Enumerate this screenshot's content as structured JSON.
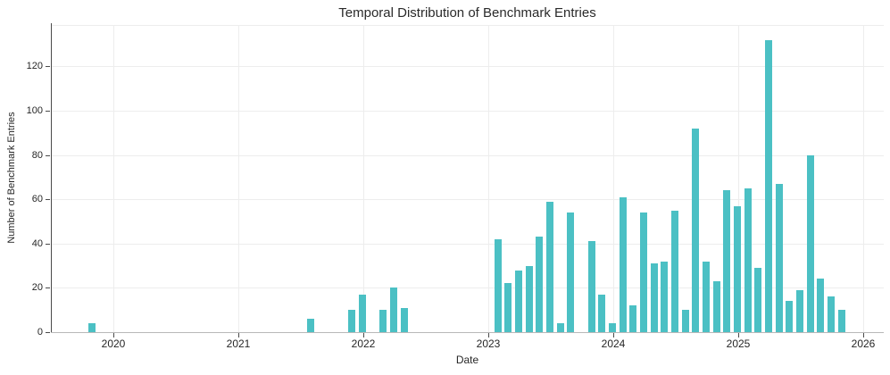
{
  "chart_data": {
    "type": "bar",
    "title": "Temporal Distribution of Benchmark Entries",
    "xlabel": "Date",
    "ylabel": "Number of Benchmark Entries",
    "bar_color": "#4bc0c4",
    "grid_color": "#ededed",
    "grid": "on",
    "legend": "none",
    "x_ticks": [
      "2020",
      "2021",
      "2022",
      "2023",
      "2024",
      "2025",
      "2026"
    ],
    "y_ticks": [
      0,
      20,
      40,
      60,
      80,
      100,
      120
    ],
    "ylim": [
      0,
      139
    ],
    "series": [
      {
        "month": "2019-11",
        "value": 4
      },
      {
        "month": "2021-08",
        "value": 6
      },
      {
        "month": "2021-12",
        "value": 10
      },
      {
        "month": "2022-01",
        "value": 17
      },
      {
        "month": "2022-03",
        "value": 10
      },
      {
        "month": "2022-04",
        "value": 20
      },
      {
        "month": "2022-05",
        "value": 11
      },
      {
        "month": "2023-02",
        "value": 42
      },
      {
        "month": "2023-03",
        "value": 22
      },
      {
        "month": "2023-04",
        "value": 28
      },
      {
        "month": "2023-05",
        "value": 30
      },
      {
        "month": "2023-06",
        "value": 43
      },
      {
        "month": "2023-07",
        "value": 59
      },
      {
        "month": "2023-08",
        "value": 4
      },
      {
        "month": "2023-09",
        "value": 54
      },
      {
        "month": "2023-11",
        "value": 41
      },
      {
        "month": "2023-12",
        "value": 17
      },
      {
        "month": "2024-01",
        "value": 4
      },
      {
        "month": "2024-02",
        "value": 61
      },
      {
        "month": "2024-03",
        "value": 12
      },
      {
        "month": "2024-04",
        "value": 54
      },
      {
        "month": "2024-05",
        "value": 31
      },
      {
        "month": "2024-06",
        "value": 32
      },
      {
        "month": "2024-07",
        "value": 55
      },
      {
        "month": "2024-08",
        "value": 10
      },
      {
        "month": "2024-09",
        "value": 92
      },
      {
        "month": "2024-10",
        "value": 32
      },
      {
        "month": "2024-11",
        "value": 23
      },
      {
        "month": "2024-12",
        "value": 64
      },
      {
        "month": "2025-01",
        "value": 57
      },
      {
        "month": "2025-02",
        "value": 65
      },
      {
        "month": "2025-03",
        "value": 29
      },
      {
        "month": "2025-04",
        "value": 132
      },
      {
        "month": "2025-05",
        "value": 67
      },
      {
        "month": "2025-06",
        "value": 14
      },
      {
        "month": "2025-07",
        "value": 19
      },
      {
        "month": "2025-08",
        "value": 80
      },
      {
        "month": "2025-09",
        "value": 24
      },
      {
        "month": "2025-10",
        "value": 16
      },
      {
        "month": "2025-11",
        "value": 10
      }
    ]
  }
}
